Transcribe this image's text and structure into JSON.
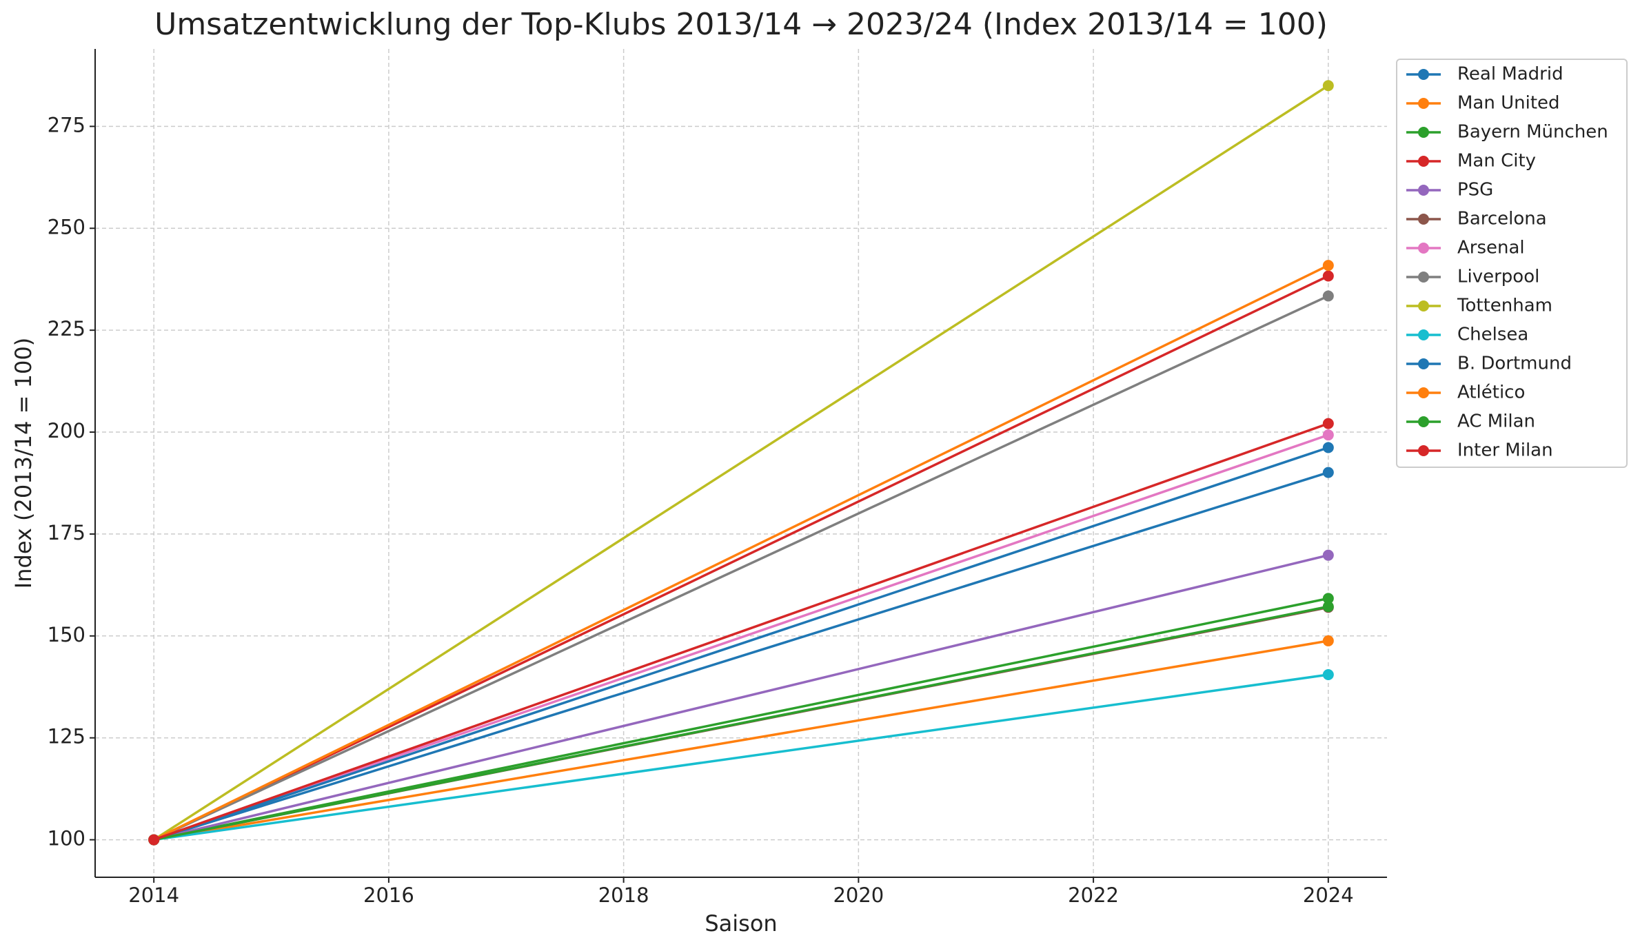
{
  "chart_data": {
    "type": "line",
    "title": "Umsatzentwicklung der Top-Klubs 2013/14 → 2023/24 (Index 2013/14 = 100)",
    "x_label": "Saison",
    "y_label": "Index (2013/14 = 100)",
    "x": [
      2014,
      2024
    ],
    "series": [
      {
        "name": "Real Madrid",
        "color": "#1f77b4",
        "values": [
          100,
          190.1
        ]
      },
      {
        "name": "Man United",
        "color": "#ff7f0e",
        "values": [
          100,
          148.8
        ]
      },
      {
        "name": "Bayern München",
        "color": "#2ca02c",
        "values": [
          100,
          159.2
        ]
      },
      {
        "name": "Man City",
        "color": "#d62728",
        "values": [
          100,
          238.3
        ]
      },
      {
        "name": "PSG",
        "color": "#9467bd",
        "values": [
          100,
          169.8
        ]
      },
      {
        "name": "Barcelona",
        "color": "#8c564b",
        "values": [
          100,
          157
        ]
      },
      {
        "name": "Arsenal",
        "color": "#e377c2",
        "values": [
          100,
          199.3
        ]
      },
      {
        "name": "Liverpool",
        "color": "#7f7f7f",
        "values": [
          100,
          233.4
        ]
      },
      {
        "name": "Tottenham",
        "color": "#bcbd22",
        "values": [
          100,
          285
        ]
      },
      {
        "name": "Chelsea",
        "color": "#17becf",
        "values": [
          100,
          140.5
        ]
      },
      {
        "name": "B. Dortmund",
        "color": "#1f77b4",
        "values": [
          100,
          196.2
        ]
      },
      {
        "name": "Atlético",
        "color": "#ff7f0e",
        "values": [
          100,
          240.9
        ]
      },
      {
        "name": "AC Milan",
        "color": "#2ca02c",
        "values": [
          100,
          157.2
        ]
      },
      {
        "name": "Inter Milan",
        "color": "#d62728",
        "values": [
          100,
          202.1
        ]
      }
    ],
    "xlim": [
      2013.5,
      2024.5
    ],
    "xticks": [
      2014,
      2016,
      2018,
      2020,
      2022,
      2024
    ],
    "ylim": [
      90.8,
      294
    ],
    "yticks": [
      100,
      125,
      150,
      175,
      200,
      225,
      250,
      275
    ],
    "grid": true,
    "legend": "outside upper right"
  }
}
